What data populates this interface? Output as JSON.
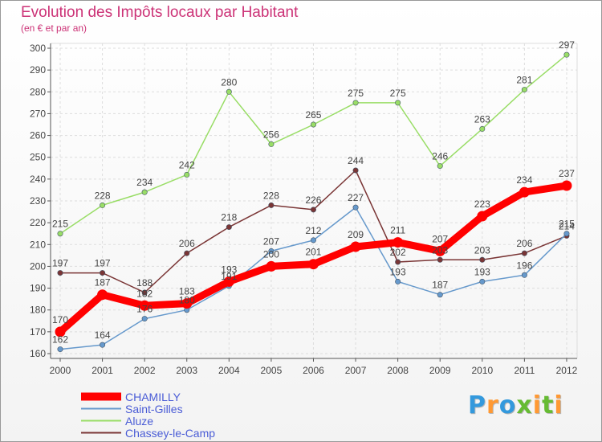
{
  "chart_data": {
    "type": "line",
    "title": "Evolution des Impôts locaux par Habitant",
    "subtitle": "(en € et par an)",
    "xlabel": "",
    "ylabel": "",
    "x": [
      "2000",
      "2001",
      "2002",
      "2003",
      "2004",
      "2005",
      "2006",
      "2007",
      "2008",
      "2009",
      "2010",
      "2011",
      "2012"
    ],
    "ylim": [
      160,
      300
    ],
    "yticks": [
      160,
      170,
      180,
      190,
      200,
      210,
      220,
      230,
      240,
      250,
      260,
      270,
      280,
      290,
      300
    ],
    "grid": true,
    "legend_position": "bottom-left",
    "series": [
      {
        "name": "CHAMILLY",
        "color": "#ff0000",
        "values": [
          170,
          187,
          182,
          183,
          193,
          200,
          201,
          209,
          211,
          207,
          223,
          234,
          237
        ]
      },
      {
        "name": "Saint-Gilles",
        "color": "#6699cc",
        "values": [
          162,
          164,
          176,
          180,
          191,
          207,
          212,
          227,
          193,
          187,
          193,
          196,
          215
        ]
      },
      {
        "name": "Aluze",
        "color": "#99dd66",
        "values": [
          215,
          228,
          234,
          242,
          280,
          256,
          265,
          275,
          275,
          246,
          263,
          281,
          297
        ]
      },
      {
        "name": "Chassey-le-Camp",
        "color": "#7a3535",
        "values": [
          197,
          197,
          188,
          206,
          218,
          228,
          226,
          244,
          202,
          203,
          203,
          206,
          214
        ]
      }
    ]
  },
  "logo": {
    "letters": [
      "P",
      "r",
      "o",
      "x",
      "i",
      "t",
      "i"
    ],
    "colors": [
      "#3399dd",
      "#ff9933",
      "#3399dd",
      "#66bb33",
      "#ff9933",
      "#66bb33",
      "#ff9933"
    ]
  }
}
